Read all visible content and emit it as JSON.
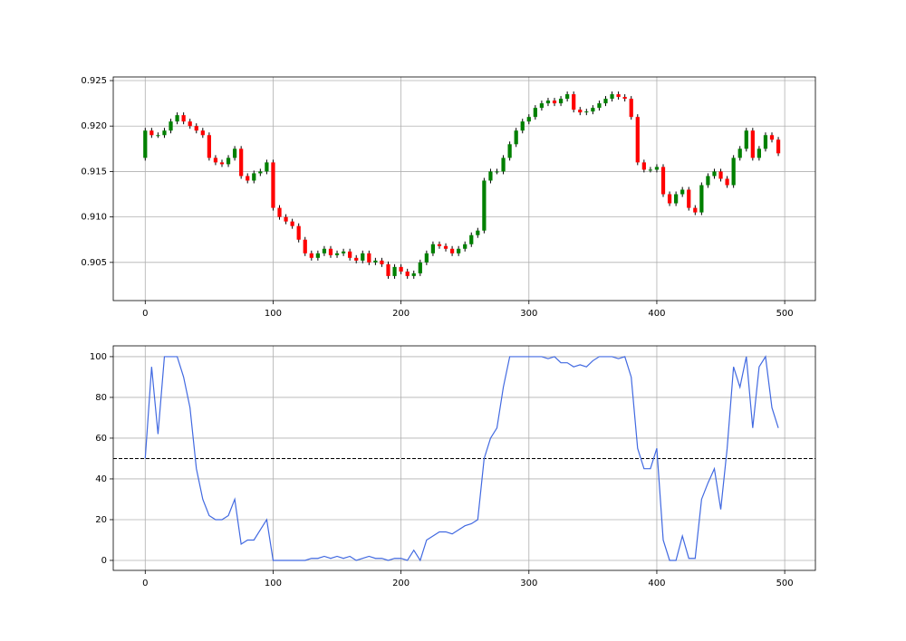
{
  "chart_data": [
    {
      "type": "candlestick",
      "x": [
        0,
        5,
        10,
        15,
        20,
        25,
        30,
        35,
        40,
        45,
        50,
        55,
        60,
        65,
        70,
        75,
        80,
        85,
        90,
        95,
        100,
        105,
        110,
        115,
        120,
        125,
        130,
        135,
        140,
        145,
        150,
        155,
        160,
        165,
        170,
        175,
        180,
        185,
        190,
        195,
        200,
        205,
        210,
        215,
        220,
        225,
        230,
        235,
        240,
        245,
        250,
        255,
        260,
        265,
        270,
        275,
        280,
        285,
        290,
        295,
        300,
        305,
        310,
        315,
        320,
        325,
        330,
        335,
        340,
        345,
        350,
        355,
        360,
        365,
        370,
        375,
        380,
        385,
        390,
        395,
        400,
        405,
        410,
        415,
        420,
        425,
        430,
        435,
        440,
        445,
        450,
        455,
        460,
        465,
        470,
        475,
        480,
        485,
        490,
        495
      ],
      "open": [
        0.9165,
        0.9195,
        0.919,
        0.919,
        0.9195,
        0.9205,
        0.9212,
        0.9205,
        0.92,
        0.9195,
        0.919,
        0.9165,
        0.916,
        0.9158,
        0.9165,
        0.9175,
        0.9145,
        0.914,
        0.9148,
        0.915,
        0.916,
        0.911,
        0.91,
        0.9095,
        0.909,
        0.9075,
        0.906,
        0.9055,
        0.906,
        0.9065,
        0.9058,
        0.906,
        0.9062,
        0.9055,
        0.9052,
        0.906,
        0.905,
        0.9052,
        0.9048,
        0.9035,
        0.9045,
        0.904,
        0.9035,
        0.9038,
        0.905,
        0.906,
        0.907,
        0.9068,
        0.9065,
        0.906,
        0.9065,
        0.907,
        0.908,
        0.9085,
        0.914,
        0.915,
        0.915,
        0.9165,
        0.918,
        0.9195,
        0.9205,
        0.921,
        0.922,
        0.9225,
        0.9228,
        0.9225,
        0.923,
        0.9235,
        0.9218,
        0.9215,
        0.9216,
        0.922,
        0.9225,
        0.923,
        0.9235,
        0.9232,
        0.923,
        0.921,
        0.916,
        0.9152,
        0.9152,
        0.9155,
        0.9125,
        0.9115,
        0.9125,
        0.913,
        0.911,
        0.9105,
        0.9135,
        0.9145,
        0.915,
        0.9142,
        0.9135,
        0.9165,
        0.9175,
        0.9195,
        0.9165,
        0.9175,
        0.919,
        0.9185
      ],
      "high": [
        0.9198,
        0.9198,
        0.9193,
        0.9198,
        0.9208,
        0.9215,
        0.9215,
        0.9208,
        0.9203,
        0.9198,
        0.9193,
        0.9168,
        0.9163,
        0.9168,
        0.9178,
        0.9178,
        0.9148,
        0.9151,
        0.9153,
        0.9163,
        0.9163,
        0.9113,
        0.9103,
        0.9098,
        0.9093,
        0.9078,
        0.9063,
        0.9063,
        0.9068,
        0.9068,
        0.9063,
        0.9065,
        0.9065,
        0.9058,
        0.9063,
        0.9063,
        0.9055,
        0.9055,
        0.9051,
        0.9048,
        0.9048,
        0.9043,
        0.9041,
        0.9053,
        0.9063,
        0.9073,
        0.9073,
        0.9071,
        0.9068,
        0.9068,
        0.9073,
        0.9083,
        0.9088,
        0.9143,
        0.9153,
        0.9153,
        0.9168,
        0.9183,
        0.9198,
        0.9208,
        0.9213,
        0.9223,
        0.9228,
        0.9231,
        0.9231,
        0.9233,
        0.9238,
        0.9238,
        0.9221,
        0.9219,
        0.9223,
        0.9228,
        0.9233,
        0.9238,
        0.9238,
        0.9235,
        0.9233,
        0.9213,
        0.9163,
        0.9155,
        0.9158,
        0.9158,
        0.9128,
        0.9128,
        0.9133,
        0.9133,
        0.9113,
        0.9138,
        0.9148,
        0.9153,
        0.9153,
        0.9145,
        0.9168,
        0.9178,
        0.9198,
        0.9198,
        0.9178,
        0.9193,
        0.9193,
        0.9188
      ],
      "low": [
        0.9162,
        0.9187,
        0.9187,
        0.9187,
        0.9192,
        0.9202,
        0.9202,
        0.9197,
        0.9192,
        0.9187,
        0.9162,
        0.9157,
        0.9155,
        0.9155,
        0.9162,
        0.9142,
        0.9137,
        0.9137,
        0.9145,
        0.9147,
        0.9107,
        0.9097,
        0.9092,
        0.9087,
        0.9072,
        0.9057,
        0.9052,
        0.9052,
        0.9057,
        0.9055,
        0.9055,
        0.9057,
        0.9052,
        0.9049,
        0.9049,
        0.9047,
        0.9047,
        0.9045,
        0.9032,
        0.9032,
        0.9037,
        0.9032,
        0.9032,
        0.9035,
        0.9047,
        0.9057,
        0.9065,
        0.9062,
        0.9057,
        0.9057,
        0.9062,
        0.9067,
        0.9077,
        0.9082,
        0.9137,
        0.9147,
        0.9147,
        0.9162,
        0.9177,
        0.9192,
        0.9202,
        0.9207,
        0.9217,
        0.9222,
        0.9222,
        0.9222,
        0.9227,
        0.9215,
        0.9212,
        0.9212,
        0.9213,
        0.9217,
        0.9222,
        0.9227,
        0.9229,
        0.9227,
        0.9207,
        0.9157,
        0.9149,
        0.9149,
        0.9149,
        0.9122,
        0.9112,
        0.9112,
        0.9122,
        0.9107,
        0.9102,
        0.9102,
        0.9132,
        0.9142,
        0.9139,
        0.9132,
        0.9132,
        0.9162,
        0.9172,
        0.9162,
        0.9162,
        0.9172,
        0.9182,
        0.9167
      ],
      "close": [
        0.9195,
        0.919,
        0.919,
        0.9195,
        0.9205,
        0.9212,
        0.9205,
        0.92,
        0.9195,
        0.919,
        0.9165,
        0.916,
        0.9158,
        0.9165,
        0.9175,
        0.9145,
        0.914,
        0.9148,
        0.915,
        0.916,
        0.911,
        0.91,
        0.9095,
        0.909,
        0.9075,
        0.906,
        0.9055,
        0.906,
        0.9065,
        0.9058,
        0.906,
        0.9062,
        0.9055,
        0.9052,
        0.906,
        0.905,
        0.9052,
        0.9048,
        0.9035,
        0.9045,
        0.904,
        0.9035,
        0.9038,
        0.905,
        0.906,
        0.907,
        0.9068,
        0.9065,
        0.906,
        0.9065,
        0.907,
        0.908,
        0.9085,
        0.914,
        0.915,
        0.915,
        0.9165,
        0.918,
        0.9195,
        0.9205,
        0.921,
        0.922,
        0.9225,
        0.9228,
        0.9225,
        0.923,
        0.9235,
        0.9218,
        0.9215,
        0.9216,
        0.922,
        0.9225,
        0.923,
        0.9235,
        0.9232,
        0.923,
        0.921,
        0.916,
        0.9152,
        0.9152,
        0.9155,
        0.9125,
        0.9115,
        0.9125,
        0.913,
        0.911,
        0.9105,
        0.9135,
        0.9145,
        0.915,
        0.9142,
        0.9135,
        0.9165,
        0.9175,
        0.9195,
        0.9165,
        0.9175,
        0.919,
        0.9185,
        0.917
      ],
      "up_color": "#008000",
      "down_color": "#ff0000",
      "wick_color": "#000000",
      "xlim": [
        -25,
        524
      ],
      "xticks": [
        0,
        100,
        200,
        300,
        400,
        500
      ],
      "ylim": [
        0.9008,
        0.9254
      ],
      "yticks": [
        {
          "value": 0.905,
          "label": "0.905"
        },
        {
          "value": 0.91,
          "label": "0.910"
        },
        {
          "value": 0.915,
          "label": "0.915"
        },
        {
          "value": 0.92,
          "label": "0.920"
        },
        {
          "value": 0.925,
          "label": "0.925"
        }
      ],
      "grid": true
    },
    {
      "type": "line",
      "x": [
        0,
        5,
        10,
        15,
        20,
        25,
        30,
        35,
        40,
        45,
        50,
        55,
        60,
        65,
        70,
        75,
        80,
        85,
        90,
        95,
        100,
        105,
        110,
        115,
        120,
        125,
        130,
        135,
        140,
        145,
        150,
        155,
        160,
        165,
        170,
        175,
        180,
        185,
        190,
        195,
        200,
        205,
        210,
        215,
        220,
        225,
        230,
        235,
        240,
        245,
        250,
        255,
        260,
        265,
        270,
        275,
        280,
        285,
        290,
        295,
        300,
        305,
        310,
        315,
        320,
        325,
        330,
        335,
        340,
        345,
        350,
        355,
        360,
        365,
        370,
        375,
        380,
        385,
        390,
        395,
        400,
        405,
        410,
        415,
        420,
        425,
        430,
        435,
        440,
        445,
        450,
        455,
        460,
        465,
        470,
        475,
        480,
        485,
        490,
        495
      ],
      "values": [
        50,
        95,
        62,
        100,
        100,
        100,
        90,
        75,
        45,
        30,
        22,
        20,
        20,
        22,
        30,
        8,
        10,
        10,
        15,
        20,
        0,
        0,
        0,
        0,
        0,
        0,
        1,
        1,
        2,
        1,
        2,
        1,
        2,
        0,
        1,
        2,
        1,
        1,
        0,
        1,
        1,
        0,
        5,
        0,
        10,
        12,
        14,
        14,
        13,
        15,
        17,
        18,
        20,
        50,
        60,
        65,
        85,
        100,
        100,
        100,
        100,
        100,
        100,
        99,
        100,
        97,
        97,
        95,
        96,
        95,
        98,
        100,
        100,
        100,
        99,
        100,
        90,
        55,
        45,
        45,
        55,
        10,
        0,
        0,
        12,
        1,
        1,
        30,
        38,
        45,
        25,
        55,
        95,
        85,
        100,
        65,
        95,
        100,
        75,
        65
      ],
      "color": "#4169e1",
      "hline": 50,
      "xlim": [
        -25,
        524
      ],
      "xticks": [
        0,
        100,
        200,
        300,
        400,
        500
      ],
      "ylim": [
        -4.9,
        105.3
      ],
      "yticks": [
        0,
        20,
        40,
        60,
        80,
        100
      ],
      "grid": true
    }
  ]
}
